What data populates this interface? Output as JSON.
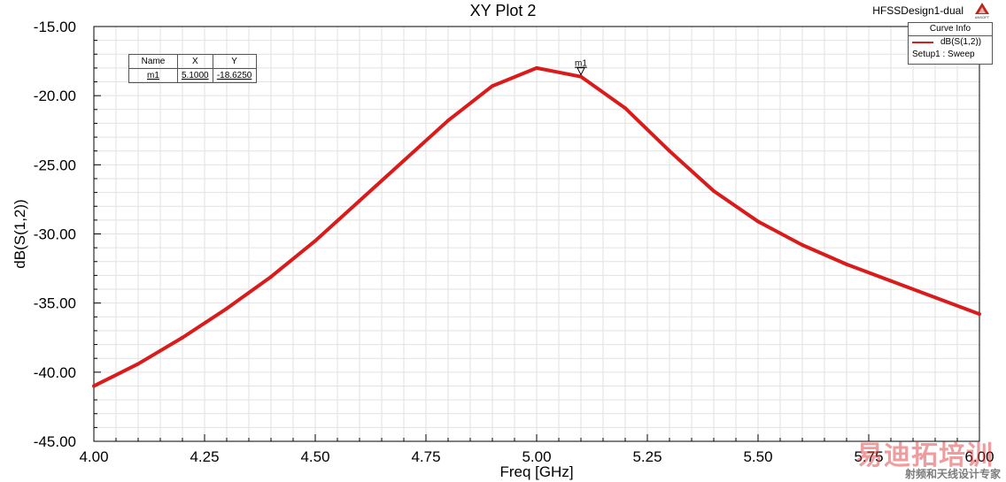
{
  "header": {
    "design": "HFSSDesign1-dual",
    "logo": "ANSOFT"
  },
  "chart_data": {
    "type": "line",
    "title": "XY Plot 2",
    "xlabel": "Freq [GHz]",
    "ylabel": "dB(S(1,2))",
    "xlim": [
      4.0,
      6.0
    ],
    "ylim": [
      -45.0,
      -15.0
    ],
    "x_ticks": [
      "4.00",
      "4.25",
      "4.50",
      "4.75",
      "5.00",
      "5.25",
      "5.50",
      "5.75",
      "6.00"
    ],
    "y_ticks": [
      "-15.00",
      "-20.00",
      "-25.00",
      "-30.00",
      "-35.00",
      "-40.00",
      "-45.00"
    ],
    "grid": true,
    "legend_position": "top-right",
    "series": [
      {
        "name": "dB(S(1,2))",
        "color": "#d91b1b",
        "x": [
          4.0,
          4.1,
          4.2,
          4.3,
          4.4,
          4.5,
          4.6,
          4.7,
          4.8,
          4.9,
          5.0,
          5.1,
          5.2,
          5.3,
          5.4,
          5.5,
          5.6,
          5.7,
          5.8,
          5.9,
          6.0
        ],
        "y": [
          -41.0,
          -39.4,
          -37.5,
          -35.4,
          -33.1,
          -30.5,
          -27.6,
          -24.7,
          -21.8,
          -19.3,
          -18.0,
          -18.625,
          -20.9,
          -24.0,
          -26.9,
          -29.1,
          -30.8,
          -32.2,
          -33.4,
          -34.6,
          -35.8
        ]
      }
    ],
    "markers": [
      {
        "name": "m1",
        "x": 5.1,
        "y": -18.625
      }
    ],
    "marker_table": {
      "headers": [
        "Name",
        "X",
        "Y"
      ],
      "rows": [
        [
          "m1",
          "5.1000",
          "-18.6250"
        ]
      ]
    },
    "curve_info": {
      "title": "Curve Info",
      "trace": "dB(S(1,2))",
      "sweep": "Setup1 : Sweep"
    }
  },
  "watermark": {
    "text": "易迪拓培训",
    "subtitle": "射频和天线设计专家"
  }
}
